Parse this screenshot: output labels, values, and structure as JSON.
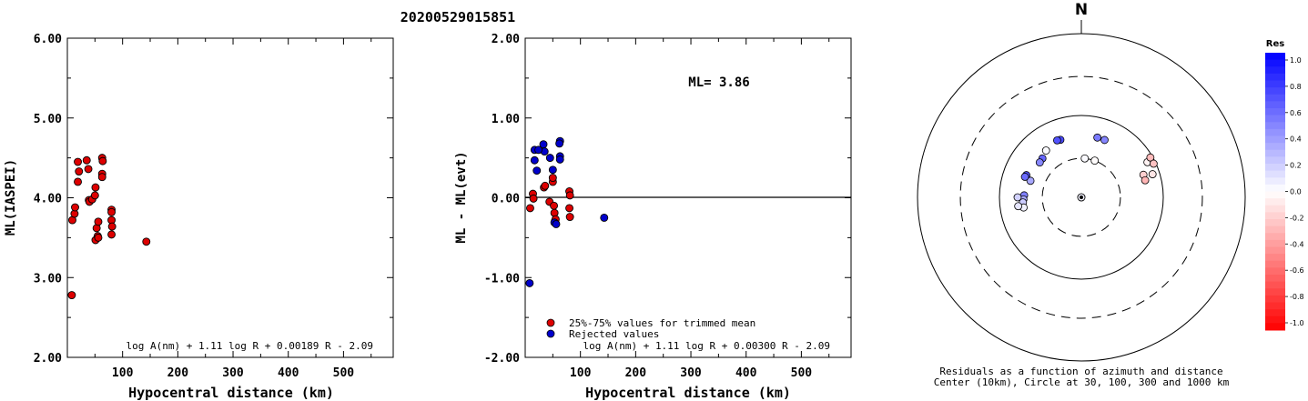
{
  "title": "20200529015851",
  "chart_data": [
    {
      "type": "scatter",
      "ylabel": "ML(IASPEI)",
      "xlabel": "Hypocentral distance (km)",
      "xlim": [
        0,
        590
      ],
      "ylim": [
        2.0,
        6.0
      ],
      "xticks": [
        "100",
        "200",
        "300",
        "400",
        "500"
      ],
      "yticks": [
        "2.00",
        "3.00",
        "4.00",
        "5.00",
        "6.00"
      ],
      "formula": "log A(nm) + 1.11 log R + 0.00189 R - 2.09",
      "points": [
        [
          8,
          2.78
        ],
        [
          9,
          3.72
        ],
        [
          13,
          3.8
        ],
        [
          14,
          3.88
        ],
        [
          19,
          4.2
        ],
        [
          19,
          4.45
        ],
        [
          21,
          4.33
        ],
        [
          35,
          4.47
        ],
        [
          38,
          4.36
        ],
        [
          39,
          3.97
        ],
        [
          40,
          3.95
        ],
        [
          45,
          3.98
        ],
        [
          50,
          4.03
        ],
        [
          51,
          4.13
        ],
        [
          51,
          3.47
        ],
        [
          53,
          3.62
        ],
        [
          55,
          3.52
        ],
        [
          56,
          3.7
        ],
        [
          56,
          3.5
        ],
        [
          63,
          4.5
        ],
        [
          64,
          4.46
        ],
        [
          63,
          4.3
        ],
        [
          63,
          4.26
        ],
        [
          80,
          3.85
        ],
        [
          80,
          3.82
        ],
        [
          80,
          3.72
        ],
        [
          81,
          3.64
        ],
        [
          80,
          3.54
        ],
        [
          143,
          3.45
        ]
      ]
    },
    {
      "type": "scatter",
      "ylabel": "ML - ML(evt)",
      "xlabel": "Hypocentral distance (km)",
      "xlim": [
        0,
        590
      ],
      "ylim": [
        -2.0,
        2.0
      ],
      "xticks": [
        "100",
        "200",
        "300",
        "400",
        "500"
      ],
      "yticks": [
        "-2.00",
        "-1.00",
        "0.00",
        "1.00",
        "2.00"
      ],
      "annotation": "ML= 3.86",
      "formula": "log A(nm) + 1.11 log R + 0.00300 R - 2.09",
      "legend": [
        {
          "label": "25%-75% values for trimmed mean",
          "color": "#dd0000"
        },
        {
          "label": "Rejected values",
          "color": "#0000cc"
        }
      ],
      "series": [
        {
          "name": "25%-75% values for trimmed mean",
          "color": "#dd0000",
          "points": [
            [
              9,
              -0.13
            ],
            [
              14,
              0.05
            ],
            [
              15,
              -0.01
            ],
            [
              34,
              0.13
            ],
            [
              36,
              0.15
            ],
            [
              44,
              -0.05
            ],
            [
              50,
              0.2
            ],
            [
              50,
              0.25
            ],
            [
              52,
              -0.1
            ],
            [
              53,
              -0.19
            ],
            [
              54,
              -0.29
            ],
            [
              55,
              -0.27
            ],
            [
              80,
              0.08
            ],
            [
              81,
              0.03
            ],
            [
              80,
              -0.13
            ],
            [
              81,
              -0.24
            ]
          ]
        },
        {
          "name": "Rejected values",
          "color": "#0000cc",
          "points": [
            [
              8,
              -1.07
            ],
            [
              17,
              0.6
            ],
            [
              17,
              0.47
            ],
            [
              21,
              0.34
            ],
            [
              33,
              0.67
            ],
            [
              35,
              0.58
            ],
            [
              24,
              0.6
            ],
            [
              45,
              0.5
            ],
            [
              50,
              0.35
            ],
            [
              53,
              -0.31
            ],
            [
              56,
              -0.33
            ],
            [
              63,
              0.71
            ],
            [
              62,
              0.68
            ],
            [
              63,
              0.52
            ],
            [
              63,
              0.48
            ],
            [
              143,
              -0.25
            ]
          ]
        }
      ]
    },
    {
      "type": "scatter",
      "subtype": "polar",
      "north_label": "N",
      "caption_line1": "Residuals as a function of azimuth and distance",
      "caption_line2": "Center (10km), Circle at 30, 100, 300 and 1000 km",
      "rings_km": [
        30,
        100,
        300,
        1000
      ],
      "colorbar_title": "Res",
      "colorbar_ticks": [
        "1.0",
        "0.8",
        "0.6",
        "0.4",
        "0.2",
        "0.0",
        "-0.2",
        "-0.4",
        "-0.6",
        "-0.8",
        "-1.0"
      ],
      "points": [
        {
          "az": 188,
          "dist_km": 8,
          "res": -0.13
        },
        {
          "az": 220,
          "dist_km": 9,
          "res": 0.05
        },
        {
          "az": 315,
          "dist_km": 47,
          "res": 0.6
        },
        {
          "az": 310,
          "dist_km": 46,
          "res": 0.47
        },
        {
          "az": 288,
          "dist_km": 45,
          "res": 0.34
        },
        {
          "az": 323,
          "dist_km": 52,
          "res": 0.02
        },
        {
          "az": 292,
          "dist_km": 53,
          "res": 0.67
        },
        {
          "az": 290,
          "dist_km": 54,
          "res": 0.58
        },
        {
          "az": 272,
          "dist_km": 50,
          "res": 0.5
        },
        {
          "az": 268,
          "dist_km": 51,
          "res": 0.35
        },
        {
          "az": 265,
          "dist_km": 52,
          "res": 0.2
        },
        {
          "az": 260,
          "dist_km": 52,
          "res": 0.05
        },
        {
          "az": 270,
          "dist_km": 60,
          "res": 0.18
        },
        {
          "az": 262,
          "dist_km": 60,
          "res": 0.1
        },
        {
          "az": 340,
          "dist_km": 56,
          "res": 0.71
        },
        {
          "az": 337,
          "dist_km": 57,
          "res": 0.68
        },
        {
          "az": 15,
          "dist_km": 57,
          "res": 0.52
        },
        {
          "az": 22,
          "dist_km": 57,
          "res": 0.48
        },
        {
          "az": 5,
          "dist_km": 30,
          "res": 0.02
        },
        {
          "az": 20,
          "dist_km": 30,
          "res": -0.01
        },
        {
          "az": 70,
          "dist_km": 64,
          "res": -0.19
        },
        {
          "az": 75,
          "dist_km": 64,
          "res": -0.29
        },
        {
          "az": 62,
          "dist_km": 82,
          "res": -0.05
        },
        {
          "az": 72,
          "dist_km": 82,
          "res": -0.1
        },
        {
          "az": 60,
          "dist_km": 94,
          "res": -0.27
        },
        {
          "az": 65,
          "dist_km": 94,
          "res": -0.24
        }
      ]
    }
  ]
}
